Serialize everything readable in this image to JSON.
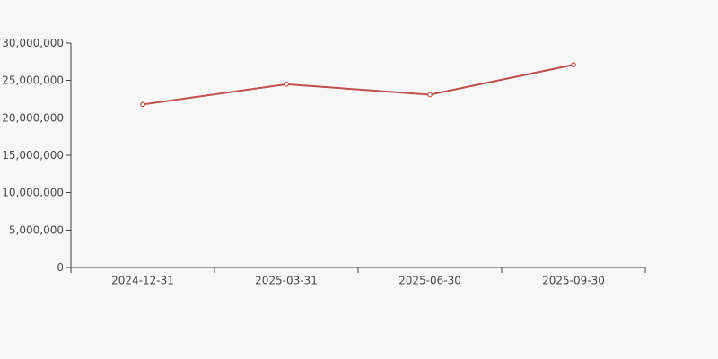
{
  "colors": {
    "background": "#f7f7f7",
    "axis": "#3f3f3f",
    "label_text": "#4a4a4a",
    "series_line": "#bf504d",
    "marker_fill": "#f7f7f7"
  },
  "chart_data": {
    "type": "line",
    "categories": [
      "2024-12-31",
      "2025-03-31",
      "2025-06-30",
      "2025-09-30"
    ],
    "series": [
      {
        "name": "series-1",
        "values": [
          21800000,
          24500000,
          23100000,
          27100000
        ]
      }
    ],
    "ylim": [
      0,
      30000000
    ],
    "ytick_interval": 5000000,
    "ytick_labels": [
      "0",
      "5,000,000",
      "10,000,000",
      "15,000,000",
      "20,000,000",
      "25,000,000",
      "30,000,000"
    ],
    "grid": false,
    "legend_position": "none",
    "marker": "open-circle",
    "line_width": 2
  }
}
